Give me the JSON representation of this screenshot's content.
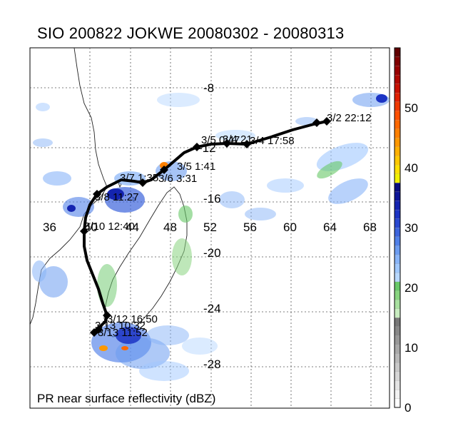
{
  "title": "SIO 200822 JOKWE 20080302 - 20080313",
  "caption": "PR near surface reflectivity (dBZ)",
  "lon_labels": [
    "36",
    "40",
    "44",
    "48",
    "52",
    "56",
    "60",
    "64",
    "68"
  ],
  "lat_labels": [
    "-8",
    "-12",
    "-16",
    "-20",
    "-24",
    "-28"
  ],
  "track_labels": [
    "3/2 22:12",
    "3/4 21",
    "3/5 0:47",
    "3/4 17:58",
    "3/5 1:41",
    "3/6 3:31",
    "3/7 1:35",
    "3/8 11:27",
    "3/10 12:40",
    "3/12 16:50",
    "3/13 10:32",
    "3/13 11:52"
  ],
  "colorbar": {
    "tick_labels": [
      "0",
      "10",
      "20",
      "30",
      "40",
      "50"
    ],
    "min": 0,
    "max": 60,
    "colors": [
      "#ffffff",
      "#f2f2f2",
      "#e4e4e4",
      "#d6d6d6",
      "#c8c8c8",
      "#b8b8b8",
      "#a8a8a8",
      "#989898",
      "#888888",
      "#787878",
      "#c8ecc0",
      "#a8e0a0",
      "#88d480",
      "#68c868",
      "#b8d8ff",
      "#a0c8ff",
      "#88b4f8",
      "#6c9cf0",
      "#5080e8",
      "#3c64dc",
      "#2848d0",
      "#1c34c4",
      "#1424b0",
      "#0c1498",
      "#080c80",
      "#f0f000",
      "#ffe000",
      "#ffc800",
      "#ffb000",
      "#ff9800",
      "#ff8000",
      "#ff6800",
      "#ff5000",
      "#f03800",
      "#e02000",
      "#c81000",
      "#b00800",
      "#980000",
      "#800000",
      "#600000"
    ]
  }
}
